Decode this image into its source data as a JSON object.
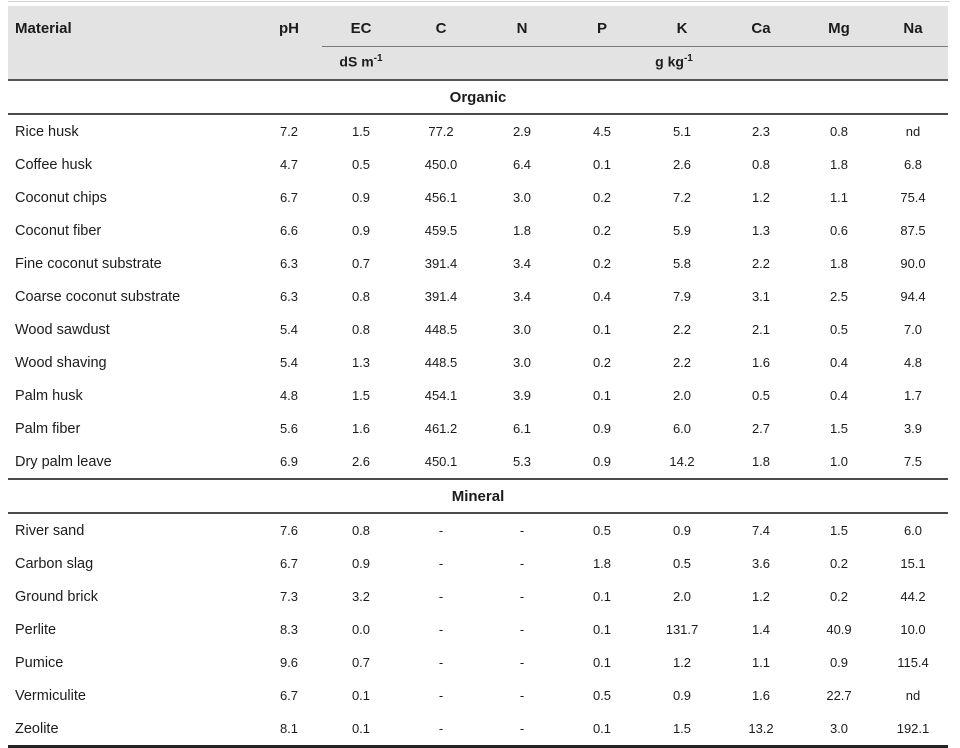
{
  "header": {
    "columns": [
      "Material",
      "pH",
      "EC",
      "C",
      "N",
      "P",
      "K",
      "Ca",
      "Mg",
      "Na"
    ],
    "ec_unit": {
      "base": "dS m",
      "exp": "-1"
    },
    "mass_unit": {
      "base": "g kg",
      "exp": "-1"
    }
  },
  "sections": [
    {
      "label": "Organic",
      "rows": [
        {
          "material": "Rice husk",
          "values": [
            "7.2",
            "1.5",
            "77.2",
            "2.9",
            "4.5",
            "5.1",
            "2.3",
            "0.8",
            "nd"
          ]
        },
        {
          "material": "Coffee husk",
          "values": [
            "4.7",
            "0.5",
            "450.0",
            "6.4",
            "0.1",
            "2.6",
            "0.8",
            "1.8",
            "6.8"
          ]
        },
        {
          "material": "Coconut chips",
          "values": [
            "6.7",
            "0.9",
            "456.1",
            "3.0",
            "0.2",
            "7.2",
            "1.2",
            "1.1",
            "75.4"
          ]
        },
        {
          "material": "Coconut fiber",
          "values": [
            "6.6",
            "0.9",
            "459.5",
            "1.8",
            "0.2",
            "5.9",
            "1.3",
            "0.6",
            "87.5"
          ]
        },
        {
          "material": "Fine coconut substrate",
          "values": [
            "6.3",
            "0.7",
            "391.4",
            "3.4",
            "0.2",
            "5.8",
            "2.2",
            "1.8",
            "90.0"
          ]
        },
        {
          "material": "Coarse coconut substrate",
          "values": [
            "6.3",
            "0.8",
            "391.4",
            "3.4",
            "0.4",
            "7.9",
            "3.1",
            "2.5",
            "94.4"
          ]
        },
        {
          "material": "Wood sawdust",
          "values": [
            "5.4",
            "0.8",
            "448.5",
            "3.0",
            "0.1",
            "2.2",
            "2.1",
            "0.5",
            "7.0"
          ]
        },
        {
          "material": "Wood shaving",
          "values": [
            "5.4",
            "1.3",
            "448.5",
            "3.0",
            "0.2",
            "2.2",
            "1.6",
            "0.4",
            "4.8"
          ]
        },
        {
          "material": "Palm husk",
          "values": [
            "4.8",
            "1.5",
            "454.1",
            "3.9",
            "0.1",
            "2.0",
            "0.5",
            "0.4",
            "1.7"
          ]
        },
        {
          "material": "Palm fiber",
          "values": [
            "5.6",
            "1.6",
            "461.2",
            "6.1",
            "0.9",
            "6.0",
            "2.7",
            "1.5",
            "3.9"
          ]
        },
        {
          "material": "Dry palm leave",
          "values": [
            "6.9",
            "2.6",
            "450.1",
            "5.3",
            "0.9",
            "14.2",
            "1.8",
            "1.0",
            "7.5"
          ]
        }
      ]
    },
    {
      "label": "Mineral",
      "rows": [
        {
          "material": "River sand",
          "values": [
            "7.6",
            "0.8",
            "-",
            "-",
            "0.5",
            "0.9",
            "7.4",
            "1.5",
            "6.0"
          ]
        },
        {
          "material": "Carbon slag",
          "values": [
            "6.7",
            "0.9",
            "-",
            "-",
            "1.8",
            "0.5",
            "3.6",
            "0.2",
            "15.1"
          ]
        },
        {
          "material": "Ground brick",
          "values": [
            "7.3",
            "3.2",
            "-",
            "-",
            "0.1",
            "2.0",
            "1.2",
            "0.2",
            "44.2"
          ]
        },
        {
          "material": "Perlite",
          "values": [
            "8.3",
            "0.0",
            "-",
            "-",
            "0.1",
            "131.7",
            "1.4",
            "40.9",
            "10.0"
          ]
        },
        {
          "material": "Pumice",
          "values": [
            "9.6",
            "0.7",
            "-",
            "-",
            "0.1",
            "1.2",
            "1.1",
            "0.9",
            "115.4"
          ]
        },
        {
          "material": "Vermiculite",
          "values": [
            "6.7",
            "0.1",
            "-",
            "-",
            "0.5",
            "0.9",
            "1.6",
            "22.7",
            "nd"
          ]
        },
        {
          "material": "Zeolite",
          "values": [
            "8.1",
            "0.1",
            "-",
            "-",
            "0.1",
            "1.5",
            "13.2",
            "3.0",
            "192.1"
          ]
        }
      ]
    }
  ],
  "colors": {
    "header_bg": "#e3e3e3",
    "rule_dark": "#4a4a4a",
    "bottom_rule": "#242424"
  }
}
